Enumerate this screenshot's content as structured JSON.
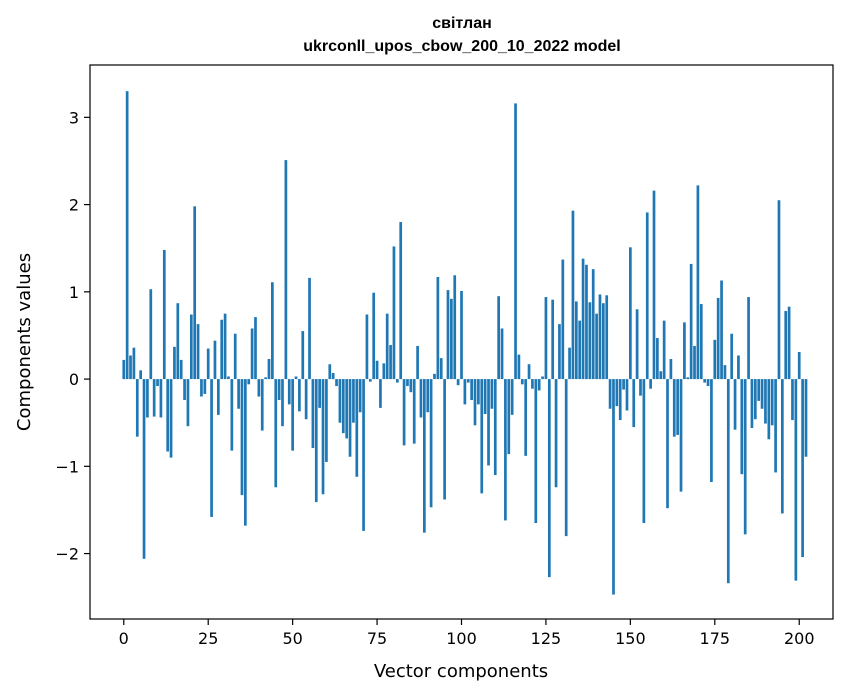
{
  "chart_data": {
    "type": "bar",
    "title": "світлан",
    "subtitle": "ukrconll_upos_cbow_200_10_2022 model",
    "xlabel": "Vector components",
    "ylabel": "Components values",
    "xlim": [
      -10,
      210
    ],
    "ylim": [
      -2.75,
      3.6
    ],
    "xticks": [
      0,
      25,
      50,
      75,
      100,
      125,
      150,
      175,
      200
    ],
    "xtick_labels": [
      "0",
      "25",
      "50",
      "75",
      "100",
      "125",
      "150",
      "175",
      "200"
    ],
    "yticks": [
      -2,
      -1,
      0,
      1,
      2,
      3
    ],
    "ytick_labels": [
      "−2",
      "−1",
      "0",
      "1",
      "2",
      "3"
    ],
    "grid": false,
    "bar_color": "#1f77b4",
    "values": [
      0.22,
      3.3,
      0.27,
      0.36,
      -0.66,
      0.1,
      -2.06,
      -0.44,
      1.03,
      -0.43,
      -0.08,
      -0.44,
      1.48,
      -0.83,
      -0.9,
      0.37,
      0.87,
      0.22,
      -0.24,
      -0.54,
      0.74,
      1.98,
      0.63,
      -0.2,
      -0.17,
      0.35,
      -1.58,
      0.44,
      -0.41,
      0.68,
      0.75,
      0.03,
      -0.82,
      0.52,
      -0.34,
      -1.33,
      -1.68,
      -0.06,
      0.58,
      0.71,
      -0.2,
      -0.59,
      0.02,
      0.23,
      1.11,
      -1.24,
      -0.24,
      -0.54,
      2.51,
      -0.29,
      -0.82,
      0.03,
      -0.37,
      0.55,
      -0.46,
      1.16,
      -0.79,
      -1.41,
      -0.33,
      -1.32,
      -0.95,
      0.17,
      0.07,
      -0.08,
      -0.5,
      -0.62,
      -0.68,
      -0.89,
      -0.5,
      -1.12,
      -0.38,
      -1.74,
      0.74,
      -0.03,
      0.99,
      0.21,
      -0.33,
      0.18,
      0.75,
      0.39,
      1.52,
      -0.04,
      1.8,
      -0.76,
      -0.08,
      -0.15,
      -0.74,
      0.38,
      -0.44,
      -1.76,
      -0.38,
      -1.47,
      0.06,
      1.17,
      0.24,
      -1.38,
      1.02,
      0.92,
      1.19,
      -0.07,
      1.01,
      -0.29,
      -0.04,
      -0.24,
      -0.53,
      -0.29,
      -1.31,
      -0.4,
      -0.99,
      -0.34,
      -1.1,
      0.95,
      0.58,
      -1.62,
      -0.86,
      -0.41,
      3.16,
      0.28,
      -0.06,
      -0.88,
      0.17,
      -0.11,
      -1.65,
      -0.13,
      0.03,
      0.94,
      -2.27,
      0.91,
      -1.24,
      0.63,
      1.37,
      -1.8,
      0.36,
      1.93,
      0.89,
      0.67,
      1.38,
      1.31,
      0.88,
      1.26,
      0.75,
      0.97,
      0.87,
      0.96,
      -0.34,
      -2.47,
      -0.31,
      -0.47,
      -0.12,
      -0.36,
      1.51,
      -0.55,
      0.8,
      -0.19,
      -1.65,
      1.91,
      -0.11,
      2.16,
      0.47,
      0.09,
      0.67,
      -1.48,
      0.23,
      -0.66,
      -0.64,
      -1.29,
      0.65,
      0.02,
      1.32,
      0.38,
      2.22,
      0.86,
      -0.04,
      -0.08,
      -1.18,
      0.45,
      0.93,
      1.13,
      0.16,
      -2.34,
      0.52,
      -0.58,
      0.27,
      -1.09,
      -1.78,
      0.94,
      -0.56,
      -0.46,
      -0.25,
      -0.34,
      -0.51,
      -0.69,
      -0.53,
      -1.07,
      2.05,
      -1.54,
      0.78,
      0.83,
      -0.47,
      -2.31,
      0.31,
      -2.04,
      -0.89
    ]
  }
}
